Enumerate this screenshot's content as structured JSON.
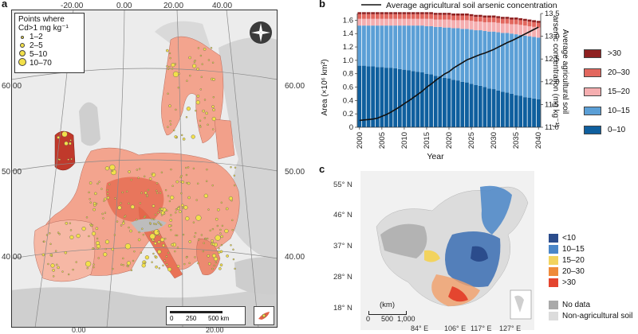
{
  "panels": {
    "a": "a",
    "b": "b",
    "c": "c"
  },
  "map_a": {
    "lon_labels": [
      "-20.00",
      "0.00",
      "20.00",
      "40.00"
    ],
    "lon_labels_bottom": [
      "0.00",
      "20.00"
    ],
    "lat_labels_left": [
      "60.00",
      "50.00",
      "40.00"
    ],
    "lat_labels_right": [
      "60.00",
      "50.00",
      "40.00"
    ],
    "legend_title_line1": "Points where",
    "legend_title_line2": "Cd>1 mg kg⁻¹",
    "legend_items": [
      "1–2",
      "2–5",
      "5–10",
      "10–70"
    ],
    "scalebar": [
      "0",
      "250",
      "500 km"
    ],
    "colors": {
      "sea": "#ececec",
      "land_out": "#d9d9d9",
      "eu_land": "#f3a48e",
      "eu_dark": "#e2553b",
      "points": "#f2e04a"
    },
    "icons": [
      "compass-rose-icon",
      "cyprus-inset-icon"
    ]
  },
  "chart_data": {
    "type": "bar",
    "title": "Average agricultural soil arsenic concentration",
    "xlabel": "Year",
    "ylabel": "Area (×10⁶ km²)",
    "y2label_line1": "Average agricultural soil",
    "y2label_line2": "arsenic concentration (mg kg⁻¹)",
    "x": [
      2000,
      2001,
      2002,
      2003,
      2004,
      2005,
      2006,
      2007,
      2008,
      2009,
      2010,
      2011,
      2012,
      2013,
      2014,
      2015,
      2016,
      2017,
      2018,
      2019,
      2020,
      2021,
      2022,
      2023,
      2024,
      2025,
      2026,
      2027,
      2028,
      2029,
      2030,
      2031,
      2032,
      2033,
      2034,
      2035,
      2036,
      2037,
      2038,
      2039,
      2040
    ],
    "xticks": [
      2000,
      2005,
      2010,
      2015,
      2020,
      2025,
      2030,
      2035,
      2040
    ],
    "ylim": [
      0,
      1.7
    ],
    "yticks": [
      "0",
      "0.2",
      "0.4",
      "0.6",
      "0.8",
      "1.0",
      "1.2",
      "1.4",
      "1.6"
    ],
    "y2lim": [
      11.0,
      13.5
    ],
    "y2ticks": [
      "11.0",
      "11.5",
      "12.0",
      "12.5",
      "13.0",
      "13.5"
    ],
    "stacked": true,
    "series": [
      {
        "name": "0–10",
        "color": "#0f5f9e",
        "values": [
          0.92,
          0.92,
          0.91,
          0.91,
          0.9,
          0.9,
          0.89,
          0.89,
          0.88,
          0.87,
          0.86,
          0.85,
          0.84,
          0.83,
          0.82,
          0.8,
          0.79,
          0.77,
          0.76,
          0.74,
          0.73,
          0.71,
          0.7,
          0.68,
          0.67,
          0.65,
          0.63,
          0.62,
          0.6,
          0.58,
          0.57,
          0.55,
          0.53,
          0.52,
          0.5,
          0.48,
          0.47,
          0.45,
          0.44,
          0.43,
          0.42
        ]
      },
      {
        "name": "10–15",
        "color": "#5b9fd6",
        "values": [
          0.6,
          0.6,
          0.61,
          0.61,
          0.62,
          0.62,
          0.63,
          0.63,
          0.64,
          0.65,
          0.66,
          0.67,
          0.68,
          0.69,
          0.7,
          0.71,
          0.72,
          0.73,
          0.74,
          0.75,
          0.76,
          0.77,
          0.78,
          0.79,
          0.8,
          0.81,
          0.82,
          0.83,
          0.84,
          0.85,
          0.86,
          0.87,
          0.88,
          0.89,
          0.9,
          0.91,
          0.91,
          0.92,
          0.92,
          0.92,
          0.92
        ]
      },
      {
        "name": "15–20",
        "color": "#f5aeb0",
        "values": [
          0.1,
          0.1,
          0.1,
          0.1,
          0.1,
          0.1,
          0.1,
          0.1,
          0.1,
          0.1,
          0.1,
          0.1,
          0.1,
          0.1,
          0.1,
          0.11,
          0.11,
          0.11,
          0.11,
          0.12,
          0.12,
          0.12,
          0.12,
          0.13,
          0.13,
          0.13,
          0.13,
          0.13,
          0.13,
          0.14,
          0.14,
          0.14,
          0.14,
          0.14,
          0.14,
          0.15,
          0.15,
          0.15,
          0.15,
          0.15,
          0.15
        ]
      },
      {
        "name": "20–30",
        "color": "#e2675e",
        "values": [
          0.07,
          0.07,
          0.07,
          0.07,
          0.07,
          0.07,
          0.07,
          0.07,
          0.07,
          0.07,
          0.07,
          0.07,
          0.07,
          0.07,
          0.07,
          0.07,
          0.07,
          0.07,
          0.07,
          0.07,
          0.07,
          0.07,
          0.07,
          0.07,
          0.07,
          0.07,
          0.07,
          0.07,
          0.07,
          0.07,
          0.07,
          0.07,
          0.07,
          0.07,
          0.07,
          0.07,
          0.07,
          0.07,
          0.07,
          0.07,
          0.07
        ]
      },
      {
        "name": ">30",
        "color": "#8f2020",
        "values": [
          0.03,
          0.03,
          0.03,
          0.03,
          0.03,
          0.03,
          0.03,
          0.03,
          0.03,
          0.03,
          0.03,
          0.03,
          0.03,
          0.03,
          0.03,
          0.03,
          0.03,
          0.03,
          0.03,
          0.03,
          0.03,
          0.03,
          0.03,
          0.03,
          0.03,
          0.03,
          0.03,
          0.03,
          0.03,
          0.03,
          0.03,
          0.03,
          0.03,
          0.03,
          0.03,
          0.03,
          0.03,
          0.03,
          0.03,
          0.03,
          0.03
        ]
      }
    ],
    "line": {
      "name": "Average agricultural soil arsenic concentration",
      "axis": "right",
      "values": [
        11.15,
        11.16,
        11.17,
        11.18,
        11.2,
        11.24,
        11.28,
        11.33,
        11.39,
        11.45,
        11.52,
        11.58,
        11.65,
        11.72,
        11.79,
        11.88,
        11.95,
        12.03,
        12.1,
        12.17,
        12.22,
        12.3,
        12.36,
        12.42,
        12.48,
        12.52,
        12.56,
        12.6,
        12.63,
        12.67,
        12.71,
        12.76,
        12.81,
        12.86,
        12.9,
        12.95,
        13.0,
        13.05,
        13.1,
        13.15,
        13.2
      ]
    },
    "legend_order": [
      ">30",
      "20–30",
      "15–20",
      "10–15",
      "0–10"
    ],
    "legend_placement": "right"
  },
  "map_c": {
    "lat_labels": [
      "55° N",
      "46° N",
      "37° N",
      "28° N",
      "18° N"
    ],
    "lon_labels": [
      "84° E",
      "106° E",
      "117° E",
      "127° E"
    ],
    "scale_unit": "(km)",
    "scale_ticks": [
      "0",
      "500",
      "1,000"
    ],
    "legend": [
      {
        "label": "<10",
        "color": "#2b4c8c"
      },
      {
        "label": "10–15",
        "color": "#4a86c8"
      },
      {
        "label": "15–20",
        "color": "#f2d35e"
      },
      {
        "label": "20–30",
        "color": "#ef8a3a"
      },
      {
        "label": ">30",
        "color": "#e4452f"
      }
    ],
    "legend_extra": [
      {
        "label": "No data",
        "color": "#a9a9a9"
      },
      {
        "label": "Non-agricultural soil",
        "color": "#dcdcdc"
      }
    ]
  }
}
